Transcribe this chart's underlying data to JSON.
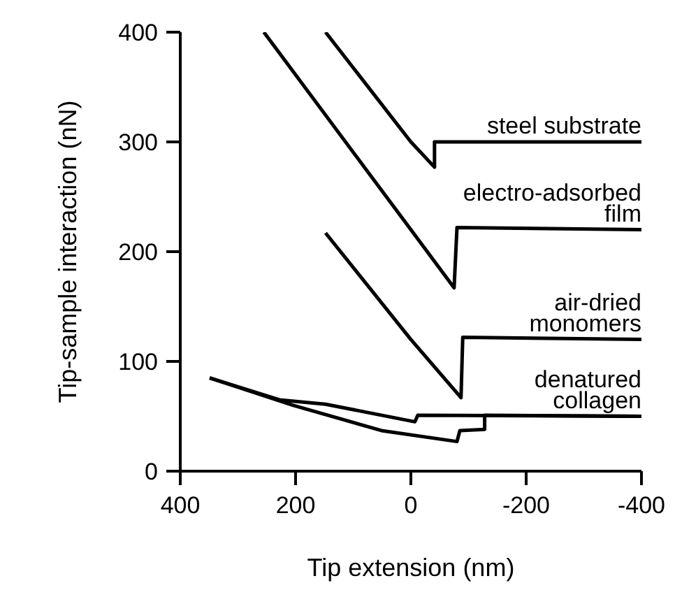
{
  "chart_data": {
    "type": "line",
    "xlabel": "Tip extension (nm)",
    "ylabel": "Tip-sample interaction (nN)",
    "xlim": [
      400,
      -400
    ],
    "xticks": [
      400,
      200,
      0,
      -200,
      -400
    ],
    "ylim": [
      0,
      400
    ],
    "yticks": [
      0,
      100,
      200,
      300,
      400
    ],
    "grid": false,
    "marker": "none",
    "line_style": "solid",
    "series": [
      {
        "name": "steel substrate",
        "color": "#000000",
        "x": [
          148,
          0,
          -41,
          -41,
          -400
        ],
        "values": [
          400,
          300,
          277,
          300,
          300
        ]
      },
      {
        "name": "electro-adsorbed film",
        "color": "#000000",
        "x": [
          255,
          0,
          -75,
          -80,
          -400
        ],
        "values": [
          400,
          220,
          167,
          222,
          220
        ]
      },
      {
        "name": "air-dried monomers",
        "color": "#000000",
        "x": [
          148,
          0,
          -87,
          -90,
          -400
        ],
        "values": [
          217,
          120,
          67,
          122,
          120
        ]
      },
      {
        "name": "denatured collagen",
        "color": "#000000",
        "x": [
          349,
          228,
          148,
          -7,
          -12,
          -400
        ],
        "values": [
          85,
          65,
          61,
          45,
          51,
          50
        ]
      },
      {
        "color": "#000000",
        "x": [
          349,
          204,
          51,
          -80,
          -85,
          -128,
          -128,
          -400
        ],
        "values": [
          85,
          60,
          37,
          27,
          37,
          38,
          51,
          50
        ]
      }
    ]
  }
}
